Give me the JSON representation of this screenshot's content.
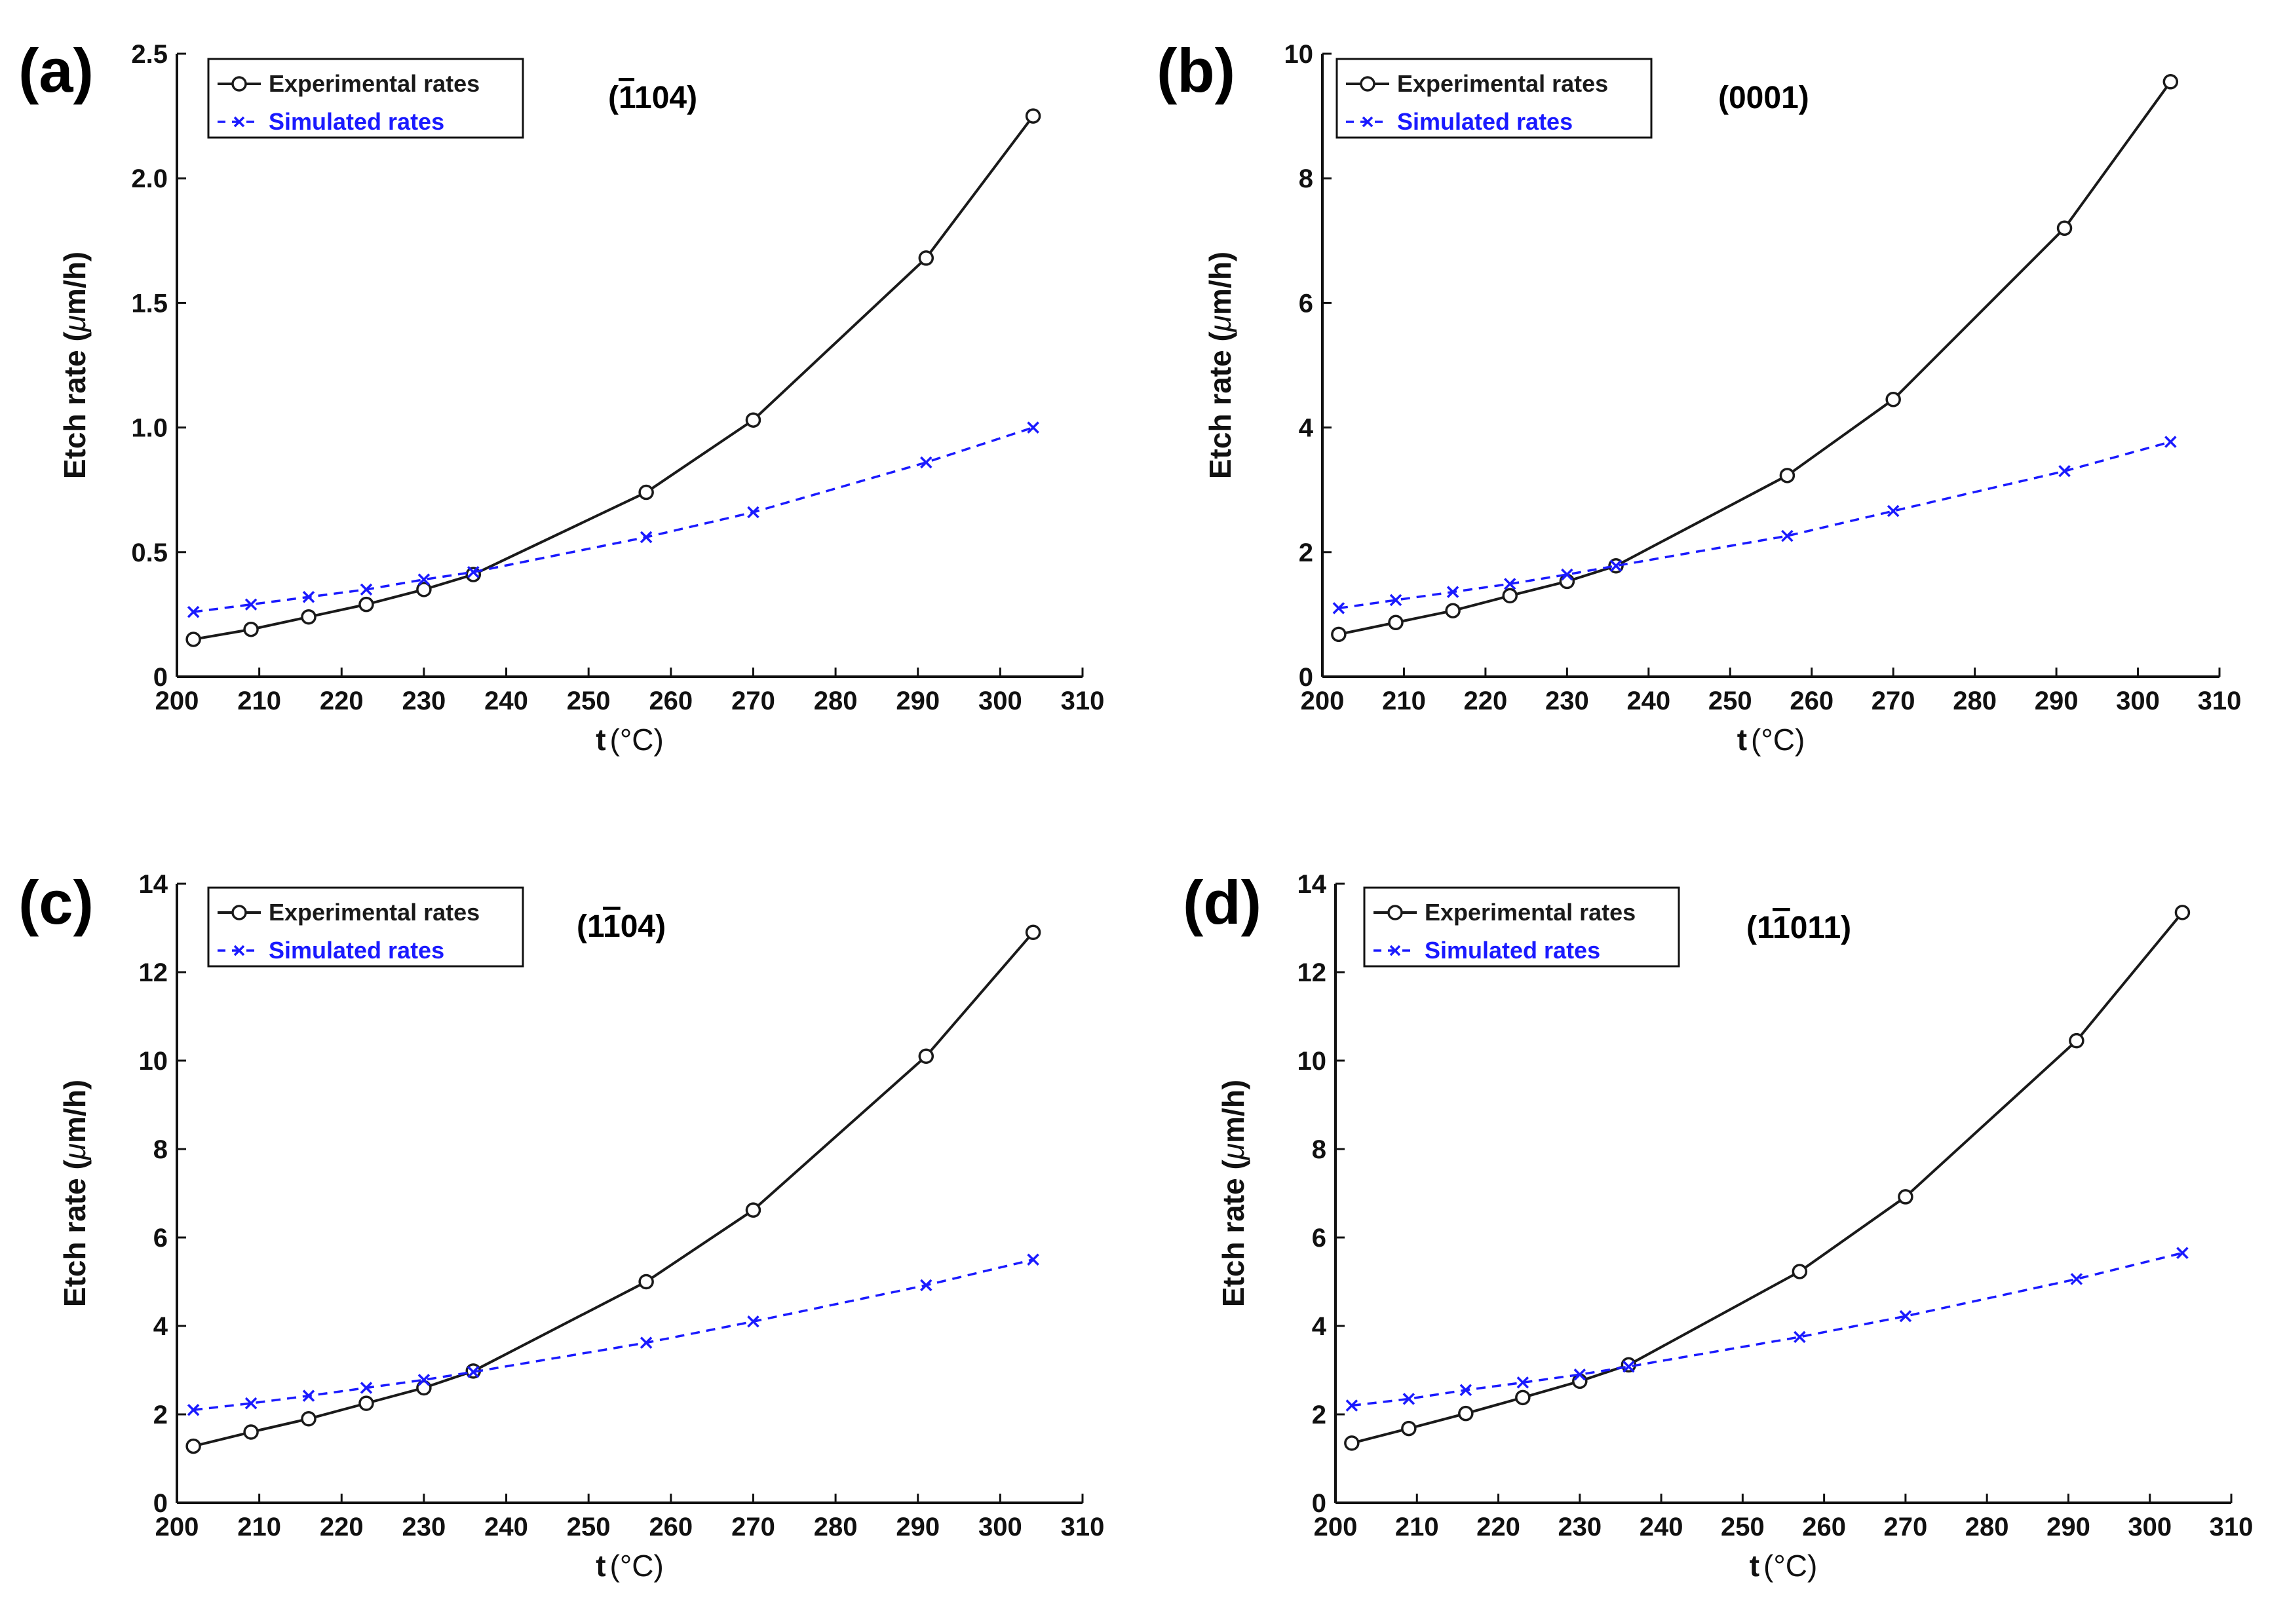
{
  "colors": {
    "experimental": "#1a1a1a",
    "simulated": "#1a1aff",
    "axis": "#111111"
  },
  "chart_data": [
    {
      "type": "line",
      "panel_label": "(a)",
      "facet_parts": [
        "(",
        "1",
        "104)"
      ],
      "facet_overline_index": 1,
      "xlabel_main": "t",
      "xlabel_unit": "(°C)",
      "ylabel_main": "Etch rate (",
      "ylabel_mu": "μ",
      "ylabel_rest": "m/h)",
      "xlim": [
        200,
        310
      ],
      "ylim": [
        0,
        2.5
      ],
      "xticks": [
        200,
        210,
        220,
        230,
        240,
        250,
        260,
        270,
        280,
        290,
        300,
        310
      ],
      "xtick_labels": [
        "200",
        "210",
        "220",
        "230",
        "240",
        "250",
        "260",
        "270",
        "280",
        "290",
        "300",
        "310"
      ],
      "yticks": [
        0,
        0.5,
        1.0,
        1.5,
        2.0,
        2.5
      ],
      "ytick_labels": [
        "0",
        "0.5",
        "1.0",
        "1.5",
        "2.0",
        "2.5"
      ],
      "legend_position": "top-left",
      "series": [
        {
          "name": "Experimental rates",
          "style": "solid-circle",
          "x": [
            202,
            209,
            216,
            223,
            230,
            236,
            257,
            270,
            291,
            304
          ],
          "y": [
            0.15,
            0.19,
            0.24,
            0.29,
            0.35,
            0.41,
            0.74,
            1.03,
            1.68,
            2.25
          ]
        },
        {
          "name": "Simulated rates",
          "style": "dashed-x",
          "x": [
            202,
            209,
            216,
            223,
            230,
            236,
            257,
            270,
            291,
            304
          ],
          "y": [
            0.26,
            0.29,
            0.32,
            0.35,
            0.39,
            0.42,
            0.56,
            0.66,
            0.86,
            1.0
          ]
        }
      ]
    },
    {
      "type": "line",
      "panel_label": "(b)",
      "facet_parts": [
        "(0001)",
        "",
        ""
      ],
      "facet_overline_index": -1,
      "xlabel_main": "t",
      "xlabel_unit": "(°C)",
      "ylabel_main": "Etch rate (",
      "ylabel_mu": "μ",
      "ylabel_rest": "m/h)",
      "xlim": [
        200,
        310
      ],
      "ylim": [
        0,
        10
      ],
      "xticks": [
        200,
        210,
        220,
        230,
        240,
        250,
        260,
        270,
        280,
        290,
        300,
        310
      ],
      "xtick_labels": [
        "200",
        "210",
        "220",
        "230",
        "240",
        "250",
        "260",
        "270",
        "280",
        "290",
        "300",
        "310"
      ],
      "yticks": [
        0,
        2,
        4,
        6,
        8,
        10
      ],
      "ytick_labels": [
        "0",
        "2",
        "4",
        "6",
        "8",
        "10"
      ],
      "legend_position": "top-left",
      "series": [
        {
          "name": "Experimental rates",
          "style": "solid-circle",
          "x": [
            202,
            209,
            216,
            223,
            230,
            236,
            257,
            270,
            291,
            304
          ],
          "y": [
            0.68,
            0.87,
            1.06,
            1.3,
            1.53,
            1.78,
            3.23,
            4.45,
            7.2,
            9.55
          ]
        },
        {
          "name": "Simulated rates",
          "style": "dashed-x",
          "x": [
            202,
            209,
            216,
            223,
            230,
            236,
            257,
            270,
            291,
            304
          ],
          "y": [
            1.1,
            1.23,
            1.36,
            1.49,
            1.64,
            1.78,
            2.26,
            2.66,
            3.3,
            3.77
          ]
        }
      ]
    },
    {
      "type": "line",
      "panel_label": "(c)",
      "facet_parts": [
        "(1",
        "1",
        "04)"
      ],
      "facet_overline_index": 1,
      "xlabel_main": "t",
      "xlabel_unit": "(°C)",
      "ylabel_main": "Etch rate (",
      "ylabel_mu": "μ",
      "ylabel_rest": "m/h)",
      "xlim": [
        200,
        310
      ],
      "ylim": [
        0,
        14
      ],
      "xticks": [
        200,
        210,
        220,
        230,
        240,
        250,
        260,
        270,
        280,
        290,
        300,
        310
      ],
      "xtick_labels": [
        "200",
        "210",
        "220",
        "230",
        "240",
        "250",
        "260",
        "270",
        "280",
        "290",
        "300",
        "310"
      ],
      "yticks": [
        0,
        2,
        4,
        6,
        8,
        10,
        12,
        14
      ],
      "ytick_labels": [
        "0",
        "2",
        "4",
        "6",
        "8",
        "10",
        "12",
        "14"
      ],
      "legend_position": "top-left",
      "series": [
        {
          "name": "Experimental rates",
          "style": "solid-circle",
          "x": [
            202,
            209,
            216,
            223,
            230,
            236,
            257,
            270,
            291,
            304
          ],
          "y": [
            1.28,
            1.6,
            1.9,
            2.25,
            2.6,
            2.98,
            5.0,
            6.62,
            10.1,
            12.9
          ]
        },
        {
          "name": "Simulated rates",
          "style": "dashed-x",
          "x": [
            202,
            209,
            216,
            223,
            230,
            236,
            257,
            270,
            291,
            304
          ],
          "y": [
            2.1,
            2.25,
            2.42,
            2.6,
            2.78,
            2.96,
            3.62,
            4.1,
            4.92,
            5.5
          ]
        }
      ]
    },
    {
      "type": "line",
      "panel_label": "(d)",
      "facet_parts": [
        "(1",
        "1",
        "011)"
      ],
      "facet_overline_index": 1,
      "xlabel_main": "t",
      "xlabel_unit": "(°C)",
      "ylabel_main": "Etch rate (",
      "ylabel_mu": "μ",
      "ylabel_rest": "m/h)",
      "xlim": [
        200,
        310
      ],
      "ylim": [
        0,
        14
      ],
      "xticks": [
        200,
        210,
        220,
        230,
        240,
        250,
        260,
        270,
        280,
        290,
        300,
        310
      ],
      "xtick_labels": [
        "200",
        "210",
        "220",
        "230",
        "240",
        "250",
        "260",
        "270",
        "280",
        "290",
        "300",
        "310"
      ],
      "yticks": [
        0,
        2,
        4,
        6,
        8,
        10,
        12,
        14
      ],
      "ytick_labels": [
        "0",
        "2",
        "4",
        "6",
        "8",
        "10",
        "12",
        "14"
      ],
      "legend_position": "top-left",
      "series": [
        {
          "name": "Experimental rates",
          "style": "solid-circle",
          "x": [
            202,
            209,
            216,
            223,
            230,
            236,
            257,
            270,
            291,
            304
          ],
          "y": [
            1.35,
            1.68,
            2.02,
            2.38,
            2.75,
            3.12,
            5.23,
            6.92,
            10.45,
            13.35
          ]
        },
        {
          "name": "Simulated rates",
          "style": "dashed-x",
          "x": [
            202,
            209,
            216,
            223,
            230,
            236,
            257,
            270,
            291,
            304
          ],
          "y": [
            2.2,
            2.35,
            2.55,
            2.72,
            2.9,
            3.08,
            3.75,
            4.22,
            5.06,
            5.65
          ]
        }
      ]
    }
  ]
}
